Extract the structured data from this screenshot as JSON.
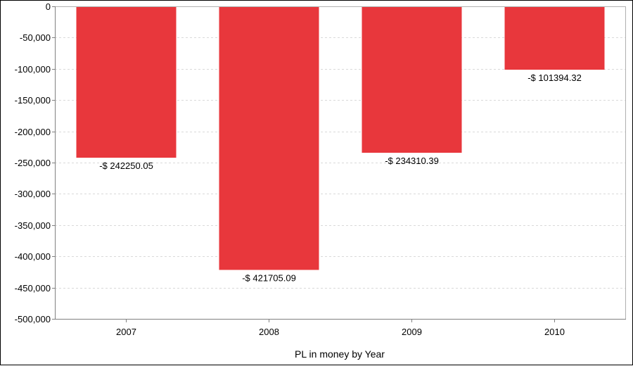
{
  "chart_data": {
    "type": "bar",
    "title": "",
    "xlabel": "PL in money by Year",
    "ylabel": "",
    "categories": [
      "2007",
      "2008",
      "2009",
      "2010"
    ],
    "values": [
      -242250.05,
      -421705.09,
      -234310.39,
      -101394.32
    ],
    "data_labels": [
      "-$ 242250.05",
      "-$ 421705.09",
      "-$ 234310.39",
      "-$ 101394.32"
    ],
    "ylim": [
      -500000,
      0
    ],
    "y_ticks": [
      0,
      -50000,
      -100000,
      -150000,
      -200000,
      -250000,
      -300000,
      -350000,
      -400000,
      -450000,
      -500000
    ],
    "y_tick_labels": [
      "0",
      "-50,000",
      "-100,000",
      "-150,000",
      "-200,000",
      "-250,000",
      "-300,000",
      "-350,000",
      "-400,000",
      "-450,000",
      "-500,000"
    ],
    "grid": true,
    "legend": "none",
    "bar_color": "#e8373c",
    "grid_color": "#d9d9d9"
  }
}
